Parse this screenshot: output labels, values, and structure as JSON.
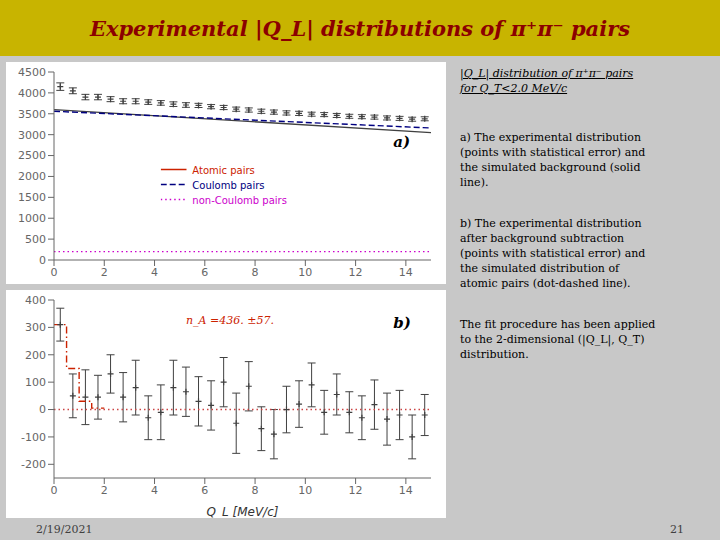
{
  "chart_data": [
    {
      "type": "line",
      "title": "Experimental |Q_L| distributions of π⁺π⁻ pairs",
      "xlim": [
        0,
        15
      ],
      "xticks": [
        0,
        2,
        4,
        6,
        8,
        10,
        12,
        14
      ],
      "ylim": [
        0,
        4500
      ],
      "yticks": [
        0,
        500,
        1000,
        1500,
        2000,
        2500,
        3000,
        3500,
        4000,
        4500
      ],
      "legend": "center",
      "annotations": [
        {
          "text": "a)"
        },
        {
          "text": "|Q_L| distribution of π⁺π⁻ pairs\nfor Q_T<2.0 MeV/c"
        },
        {
          "text": "a) The experimental distribution\n(points with statistical error) and\nthe simulated background (solid\nline)."
        },
        {
          "text": "b) The experimental distribution\nafter background subtraction\n(points with statistical error) and\nthe simulated distribution of\natomic pairs (dot-dashed line)."
        },
        {
          "text": "The fit procedure has been applied\nto the 2-dimensional (|Q_L|, Q_T)\ndistribution."
        },
        {
          "text": "2/19/2021"
        },
        {
          "text": "21"
        }
      ],
      "series": [
        {
          "type": "scatter",
          "marker": "plus",
          "color": "#404040",
          "x": [
            0.25,
            0.75,
            1.25,
            1.75,
            2.25,
            2.75,
            3.25,
            3.75,
            4.25,
            4.75,
            5.25,
            5.75,
            6.25,
            6.75,
            7.25,
            7.75,
            8.25,
            8.75,
            9.25,
            9.75,
            10.25,
            10.75,
            11.25,
            11.75,
            12.25,
            12.75,
            13.25,
            13.75,
            14.25,
            14.75
          ],
          "values": [
            4150,
            4050,
            3900,
            3900,
            3850,
            3800,
            3800,
            3780,
            3760,
            3730,
            3710,
            3700,
            3670,
            3650,
            3610,
            3590,
            3560,
            3540,
            3520,
            3510,
            3490,
            3480,
            3460,
            3440,
            3430,
            3420,
            3400,
            3390,
            3370,
            3380
          ],
          "error": [
            90,
            70,
            65,
            65,
            60,
            60,
            60,
            55,
            55,
            55,
            55,
            50,
            50,
            50,
            50,
            50,
            50,
            50,
            50,
            50,
            48,
            48,
            48,
            48,
            48,
            48,
            48,
            48,
            48,
            48
          ]
        },
        {
          "type": "line",
          "line_style": "solid",
          "color": "#404040",
          "x": [
            0,
            15
          ],
          "values": [
            3600,
            3050
          ]
        },
        {
          "name": "Coulomb pairs",
          "type": "line",
          "line_style": "dashed",
          "color": "#000080",
          "x": [
            0,
            15
          ],
          "values": [
            3560,
            3160
          ]
        },
        {
          "name": "non-Coulomb pairs",
          "type": "line",
          "line_style": "dotted",
          "color": "#cc00cc",
          "x": [
            0,
            15
          ],
          "values": [
            200,
            200
          ]
        }
      ]
    },
    {
      "type": "line",
      "xlabel": "Q_L [MeV/c]",
      "xlim": [
        0,
        15
      ],
      "xticks": [
        0,
        2,
        4,
        6,
        8,
        10,
        12,
        14
      ],
      "ylim": [
        -250,
        400
      ],
      "yticks": [
        -200,
        -100,
        0,
        100,
        200,
        300,
        400
      ],
      "annotations": [
        {
          "text": "n_A =436. ±57.",
          "color": "#cc2200"
        },
        {
          "text": "b)"
        }
      ],
      "series": [
        {
          "type": "scatter",
          "marker": "plus",
          "color": "#404040",
          "x": [
            0.25,
            0.75,
            1.25,
            1.75,
            2.25,
            2.75,
            3.25,
            3.75,
            4.25,
            4.75,
            5.25,
            5.75,
            6.25,
            6.75,
            7.25,
            7.75,
            8.25,
            8.75,
            9.25,
            9.75,
            10.25,
            10.75,
            11.25,
            11.75,
            12.25,
            12.75,
            13.25,
            13.75,
            14.25,
            14.75
          ],
          "values": [
            310,
            50,
            45,
            45,
            130,
            45,
            80,
            -30,
            -10,
            80,
            65,
            30,
            15,
            100,
            -50,
            85,
            -70,
            -90,
            0,
            20,
            90,
            -10,
            55,
            -10,
            -30,
            18,
            -35,
            -20,
            -100,
            -20
          ],
          "error": [
            60,
            80,
            100,
            80,
            70,
            90,
            100,
            80,
            100,
            100,
            90,
            90,
            90,
            90,
            110,
            90,
            80,
            90,
            85,
            85,
            80,
            80,
            75,
            75,
            80,
            90,
            95,
            90,
            80,
            75
          ]
        },
        {
          "type": "line",
          "line_style": "dotted",
          "color": "#cc4444",
          "x": [
            0,
            15
          ],
          "values": [
            0,
            0
          ]
        },
        {
          "name": "Atomic pairs",
          "type": "line",
          "line_style": "dashdot",
          "color": "#cc2200",
          "x": [
            0,
            0.5,
            0.5,
            1.0,
            1.0,
            1.5,
            1.5,
            2.0
          ],
          "values": [
            310,
            310,
            150,
            150,
            30,
            30,
            5,
            5
          ]
        }
      ]
    }
  ]
}
